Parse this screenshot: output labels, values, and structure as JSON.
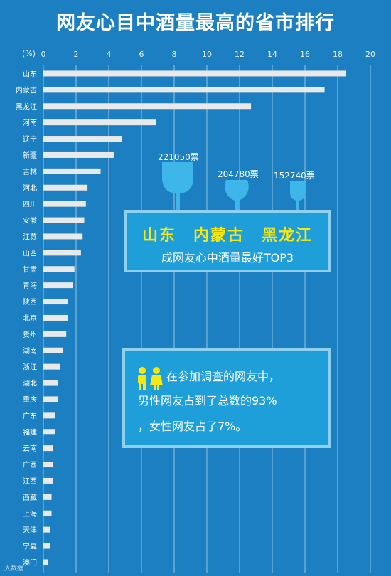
{
  "title": "网友心目中酒量最高的省市排行",
  "unit_label": "(%)",
  "chart_data": {
    "type": "bar",
    "orientation": "horizontal",
    "title": "网友心目中酒量最高的省市排行",
    "xlabel": "(%)",
    "xlim": [
      0,
      20
    ],
    "xticks": [
      0,
      2,
      4,
      6,
      8,
      10,
      12,
      14,
      16,
      18,
      20
    ],
    "grid": true,
    "categories": [
      "山东",
      "内蒙古",
      "黑龙江",
      "河南",
      "辽宁",
      "新疆",
      "吉林",
      "河北",
      "四川",
      "安徽",
      "江苏",
      "山西",
      "甘肃",
      "青海",
      "陕西",
      "北京",
      "贵州",
      "湖南",
      "浙江",
      "湖北",
      "重庆",
      "广东",
      "福建",
      "云南",
      "广西",
      "江西",
      "西藏",
      "上海",
      "天津",
      "宁夏",
      "澳门"
    ],
    "values": [
      18.5,
      17.2,
      12.7,
      6.9,
      4.8,
      4.3,
      3.5,
      2.7,
      2.6,
      2.5,
      2.4,
      2.3,
      1.9,
      1.8,
      1.5,
      1.5,
      1.4,
      1.2,
      1.0,
      0.9,
      0.9,
      0.7,
      0.7,
      0.6,
      0.6,
      0.6,
      0.5,
      0.5,
      0.4,
      0.4,
      0.3
    ]
  },
  "top3": {
    "names": "山东　内蒙古　黑龙江",
    "subtitle": "成网友心中酒量最好TOP3",
    "votes": [
      "221050票",
      "204780票",
      "152740票"
    ]
  },
  "gender": {
    "line1": "在参加调查的网友中，",
    "line2": "男性网友占到了总数的93%",
    "line3": "，女性网友占了7%。"
  },
  "watermark": "大数据",
  "colors": {
    "background": "#1b7fc1",
    "bar": "#e9e9e9",
    "highlight_text": "#f5e814",
    "box_fill": "#1f9fd9",
    "box_border": "#8fd0ef"
  }
}
